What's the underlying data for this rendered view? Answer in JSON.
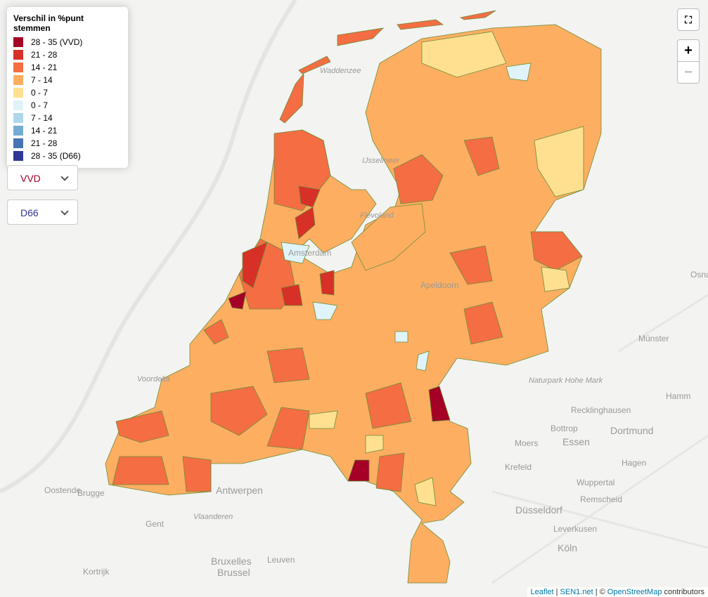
{
  "legend": {
    "title": "Verschil in %punt stemmen",
    "items": [
      {
        "label": "28 - 35 (VVD)",
        "color": "#a50026"
      },
      {
        "label": "21 - 28",
        "color": "#d73027"
      },
      {
        "label": "14 - 21",
        "color": "#f46d43"
      },
      {
        "label": "7 - 14",
        "color": "#fdae61"
      },
      {
        "label": "0 - 7",
        "color": "#fee090"
      },
      {
        "label": "0 - 7",
        "color": "#e0f3f8"
      },
      {
        "label": "7 - 14",
        "color": "#abd9e9"
      },
      {
        "label": "14 - 21",
        "color": "#74add1"
      },
      {
        "label": "21 - 28",
        "color": "#4575b4"
      },
      {
        "label": "28 - 35 (D66)",
        "color": "#313695"
      }
    ]
  },
  "selects": [
    {
      "label": "VVD",
      "color": "#a50026"
    },
    {
      "label": "D66",
      "color": "#313695"
    }
  ],
  "controls": {
    "zoom_in": "+",
    "zoom_out": "−"
  },
  "attribution": [
    "Leaflet",
    "|",
    "SEN1.net",
    "| ©",
    "OpenStreetMap",
    "contributors"
  ],
  "places": [
    "Waddenzee",
    "IJsselmeer",
    "Flevoland",
    "Amsterdam",
    "Apeldoorn",
    "Voordelta",
    "Münster",
    "Naturpark Hohe Mark",
    "Recklinghausen",
    "Hamm",
    "Bottrop",
    "Dortmund",
    "Moers",
    "Essen",
    "Krefeld",
    "Hagen",
    "Wuppertal",
    "Düsseldorf",
    "Remscheid",
    "Leverkusen",
    "Köln",
    "Antwerpen",
    "Oostende",
    "Brugge",
    "Gent",
    "Vlaanderen",
    "Bruxelles",
    "Brussel",
    "Leuven",
    "Kortrijk",
    "Osna"
  ]
}
